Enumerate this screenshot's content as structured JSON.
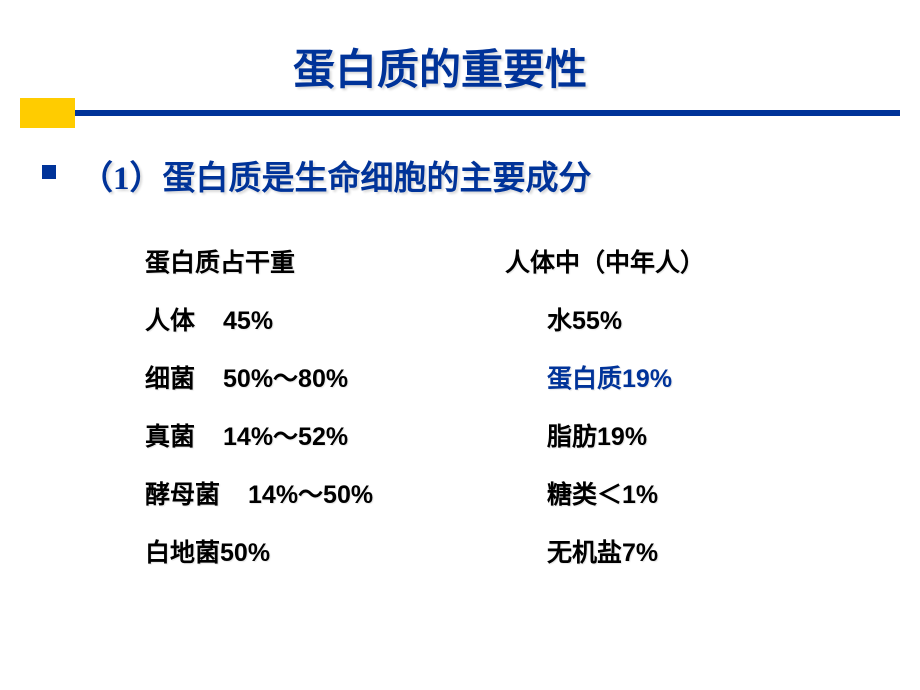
{
  "slide": {
    "title": "蛋白质的重要性",
    "subtitle": "（1）蛋白质是生命细胞的主要成分",
    "colors": {
      "title_color": "#003399",
      "accent_color": "#ffcc00",
      "text_color": "#000000",
      "highlight_color": "#003399",
      "background": "#ffffff"
    },
    "typography": {
      "title_fontsize": 42,
      "subtitle_fontsize": 33,
      "body_fontsize": 25,
      "font_family": "SimSun"
    },
    "left_column": {
      "header": "蛋白质占干重",
      "rows": [
        {
          "label": "人体",
          "value": "45%",
          "gap": "med"
        },
        {
          "label": "细菌",
          "value": "50%～80%",
          "gap": "med"
        },
        {
          "label": "真菌",
          "value": "14%～52%",
          "gap": "med"
        },
        {
          "label": "酵母菌",
          "value": "14%～50%",
          "gap": "med"
        },
        {
          "label": "白地菌",
          "value": "50%",
          "gap": "none"
        }
      ]
    },
    "right_column": {
      "header": "人体中（中年人）",
      "rows": [
        {
          "label": "水",
          "value": "55%",
          "highlight": false
        },
        {
          "label": "蛋白质",
          "value": "19%",
          "highlight": true
        },
        {
          "label": "脂肪",
          "value": "19%",
          "highlight": false
        },
        {
          "label": "糖类",
          "value": "＜1%",
          "highlight": false
        },
        {
          "label": "无机盐",
          "value": "7%",
          "highlight": false
        }
      ]
    }
  }
}
